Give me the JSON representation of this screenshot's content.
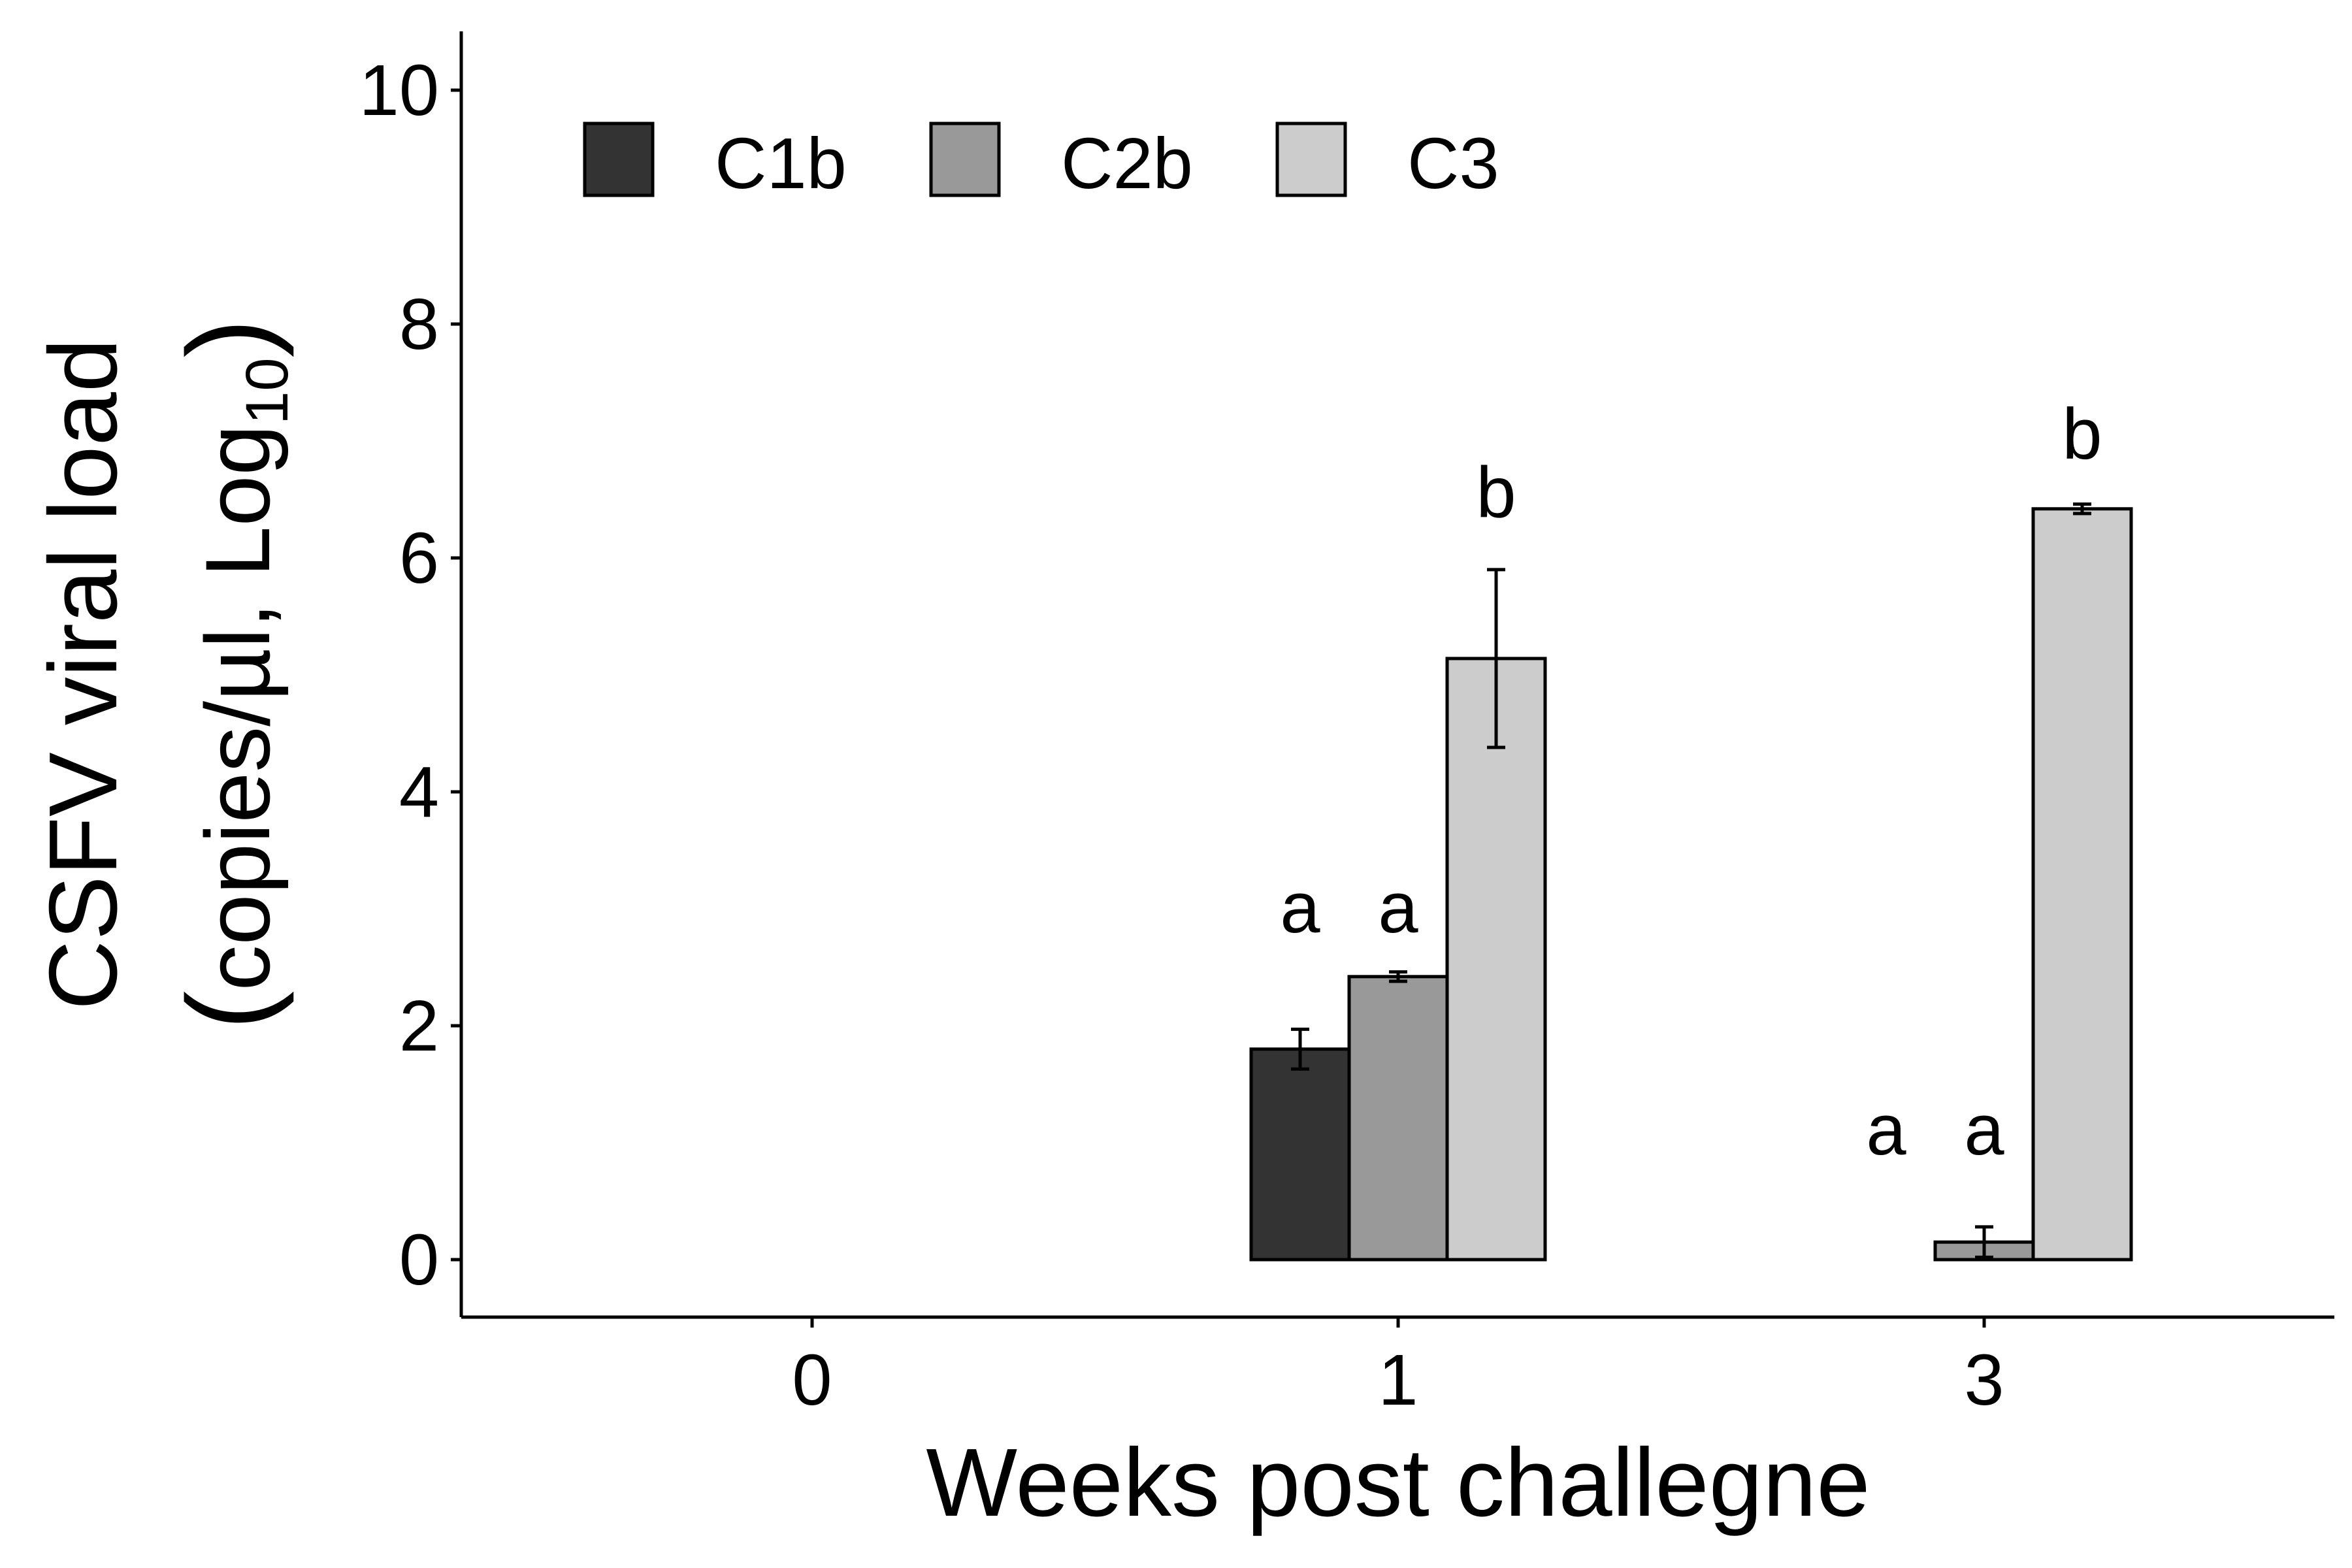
{
  "chart_data": {
    "type": "bar",
    "title": "",
    "xlabel": "Weeks post challegne",
    "ylabel": {
      "line1": "CSFV viral load",
      "line2_main": "copies/µl, Log",
      "line2_sub": "10"
    },
    "categories": [
      "0",
      "1",
      "3"
    ],
    "ylim": [
      -0.5,
      10.5
    ],
    "yticks": [
      "0",
      "2",
      "4",
      "6",
      "8",
      "10"
    ],
    "grid": false,
    "legend": "top-left",
    "series": [
      {
        "name": "C1b",
        "color": "#333333",
        "values": [
          0,
          1.8,
          0
        ],
        "errors": [
          0,
          0.17,
          0
        ]
      },
      {
        "name": "C2b",
        "color": "#999999",
        "values": [
          0,
          2.42,
          0.15
        ],
        "errors": [
          0,
          0.04,
          0.13
        ]
      },
      {
        "name": "C3",
        "color": "#cccccc",
        "values": [
          0,
          5.14,
          6.42
        ],
        "errors": [
          0,
          0.76,
          0.04
        ]
      }
    ],
    "annotations": [
      {
        "category": 1,
        "series": 0,
        "label": "a",
        "y": 2.8
      },
      {
        "category": 1,
        "series": 1,
        "label": "a",
        "y": 2.8
      },
      {
        "category": 1,
        "series": 2,
        "label": "b",
        "y": 6.35
      },
      {
        "category": 2,
        "series": 0,
        "label": "a",
        "y": 0.9
      },
      {
        "category": 2,
        "series": 1,
        "label": "a",
        "y": 0.9
      },
      {
        "category": 2,
        "series": 2,
        "label": "b",
        "y": 6.85
      }
    ]
  }
}
